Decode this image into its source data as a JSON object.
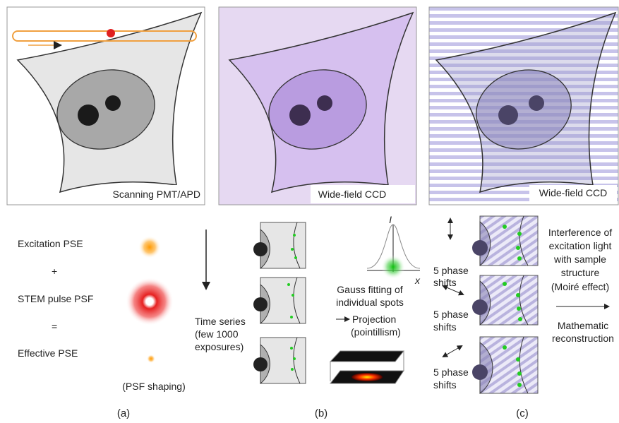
{
  "panels": [
    {
      "label": "Scanning PMT/APD"
    },
    {
      "label": "Wide-field CCD"
    },
    {
      "label": "Wide-field CCD"
    }
  ],
  "psf": {
    "excitation": "Excitation PSE",
    "plus": "+",
    "stem": "STEM pulse PSF",
    "equals": "=",
    "effective": "Effective PSE",
    "note": "(PSF shaping)"
  },
  "palm": {
    "time_series": [
      "Time series",
      "(few 1000",
      "exposures)"
    ],
    "axis_i": "I",
    "axis_x": "x",
    "gauss": [
      "Gauss fitting of",
      "individual spots"
    ],
    "projection": [
      "Projection",
      "(pointillism)"
    ]
  },
  "sim": {
    "phase_shifts": [
      [
        "5 phase",
        "shifts"
      ],
      [
        "5 phase",
        "shifts"
      ],
      [
        "5 phase",
        "shifts"
      ]
    ],
    "interference": [
      "Interference of",
      "excitation light",
      "with sample",
      "structure",
      "(Moiré effect)"
    ],
    "reconstruction": [
      "Mathematic",
      "reconstruction"
    ]
  },
  "captions": [
    "(a)",
    "(b)",
    "(c)"
  ]
}
